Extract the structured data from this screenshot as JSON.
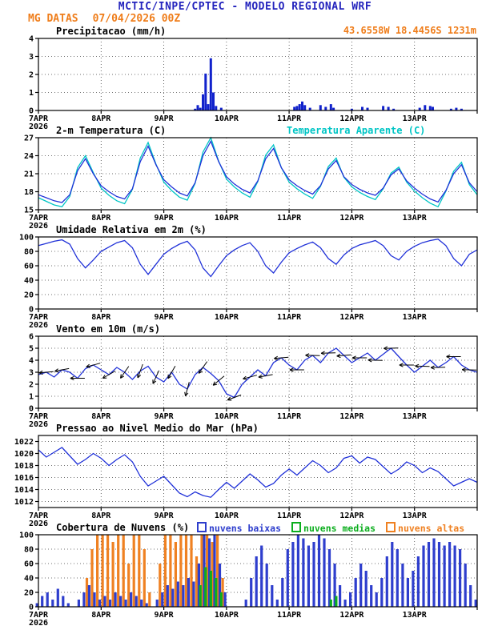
{
  "header": {
    "title": "MCTIC/INPE/CPTEC - MODELO REGIONAL WRF",
    "station": "MG DATAS",
    "run": "07/04/2026 00Z",
    "location": "43.6558W 18.4456S 1231m",
    "title_color": "#2323bd",
    "accent_color": "#ef7d1a"
  },
  "axis": {
    "ticks": [
      "7APR",
      "8APR",
      "9APR",
      "10APR",
      "11APR",
      "12APR",
      "13APR"
    ],
    "year": "2026",
    "hours_per_tick": 24,
    "total_hours": 168
  },
  "chart_data": [
    {
      "id": "precipitation",
      "title": "Precipitacao (mm/h)",
      "type": "bar",
      "ylim": [
        0,
        4
      ],
      "yticks": [
        0,
        1,
        2,
        3,
        4
      ],
      "bar_color": "#1122cc",
      "points": [
        [
          60,
          0.1
        ],
        [
          61,
          0.3
        ],
        [
          62,
          0.15
        ],
        [
          63,
          0.9
        ],
        [
          64,
          2.05
        ],
        [
          65,
          0.35
        ],
        [
          66,
          2.9
        ],
        [
          67,
          1.0
        ],
        [
          68,
          0.25
        ],
        [
          70,
          0.15
        ],
        [
          98,
          0.2
        ],
        [
          99,
          0.25
        ],
        [
          100,
          0.35
        ],
        [
          101,
          0.5
        ],
        [
          102,
          0.3
        ],
        [
          104,
          0.15
        ],
        [
          108,
          0.3
        ],
        [
          110,
          0.2
        ],
        [
          112,
          0.35
        ],
        [
          113,
          0.15
        ],
        [
          120,
          0.1
        ],
        [
          124,
          0.2
        ],
        [
          126,
          0.15
        ],
        [
          132,
          0.25
        ],
        [
          134,
          0.2
        ],
        [
          136,
          0.1
        ],
        [
          146,
          0.15
        ],
        [
          148,
          0.3
        ],
        [
          150,
          0.25
        ],
        [
          151,
          0.2
        ],
        [
          158,
          0.1
        ],
        [
          160,
          0.15
        ],
        [
          162,
          0.1
        ]
      ]
    },
    {
      "id": "temperature",
      "title": "2-m Temperatura (C)",
      "legend_label": "Temperatura Aparente (C)",
      "type": "multiline",
      "ylim": [
        15,
        27
      ],
      "yticks": [
        15,
        18,
        21,
        24,
        27
      ],
      "step_hours": 3,
      "series": [
        {
          "name": "Temperatura",
          "color": "#2031d8",
          "values": [
            17.5,
            17.0,
            16.5,
            16.2,
            17.5,
            21.5,
            23.5,
            21.0,
            19.0,
            18.0,
            17.2,
            16.8,
            18.5,
            23.0,
            25.6,
            22.5,
            20.0,
            18.8,
            17.8,
            17.3,
            19.5,
            24.0,
            26.4,
            23.0,
            20.5,
            19.3,
            18.4,
            17.8,
            19.8,
            23.5,
            25.2,
            22.0,
            20.0,
            19.0,
            18.2,
            17.6,
            19.0,
            21.8,
            23.2,
            20.5,
            19.2,
            18.4,
            17.8,
            17.4,
            18.6,
            20.8,
            21.8,
            19.8,
            18.6,
            17.6,
            16.8,
            16.3,
            18.2,
            21.0,
            22.5,
            19.5,
            18.0
          ]
        },
        {
          "name": "Temperatura Aparente",
          "color": "#00c5c5",
          "values": [
            17.0,
            16.4,
            15.8,
            15.5,
            17.2,
            22.0,
            24.0,
            21.2,
            18.6,
            17.4,
            16.5,
            16.0,
            18.4,
            23.6,
            26.2,
            22.6,
            19.6,
            18.2,
            17.1,
            16.6,
            19.4,
            24.6,
            27.0,
            23.1,
            20.1,
            18.8,
            17.8,
            17.1,
            19.7,
            24.1,
            25.8,
            22.0,
            19.6,
            18.5,
            17.6,
            16.9,
            18.9,
            22.2,
            23.6,
            20.4,
            18.8,
            17.9,
            17.2,
            16.7,
            18.5,
            21.1,
            22.1,
            19.6,
            18.1,
            17.0,
            16.1,
            15.5,
            18.1,
            21.4,
            22.9,
            19.2,
            17.5
          ]
        }
      ]
    },
    {
      "id": "relative-humidity",
      "title": "Umidade Relativa em 2m (%)",
      "type": "line",
      "ylim": [
        0,
        100
      ],
      "yticks": [
        0,
        20,
        40,
        60,
        80,
        100
      ],
      "color": "#2031d8",
      "step_hours": 3,
      "values": [
        88,
        91,
        94,
        96,
        90,
        70,
        57,
        68,
        80,
        86,
        92,
        95,
        85,
        62,
        48,
        62,
        76,
        84,
        90,
        94,
        82,
        57,
        45,
        60,
        74,
        82,
        88,
        92,
        80,
        60,
        50,
        65,
        78,
        84,
        89,
        93,
        85,
        70,
        62,
        75,
        84,
        89,
        92,
        95,
        88,
        74,
        68,
        80,
        87,
        92,
        95,
        97,
        88,
        70,
        60,
        76,
        82
      ]
    },
    {
      "id": "wind-10m",
      "title": "Vento em 10m (m/s)",
      "type": "wind",
      "ylim": [
        0,
        6
      ],
      "yticks": [
        0,
        1,
        2,
        3,
        4,
        5,
        6
      ],
      "color": "#2031d8",
      "step_hours": 3,
      "values": [
        2.8,
        3.0,
        2.6,
        3.2,
        3.0,
        2.5,
        3.3,
        3.6,
        3.2,
        2.8,
        3.4,
        3.0,
        2.4,
        3.1,
        3.5,
        2.6,
        2.2,
        3.0,
        2.0,
        1.6,
        2.8,
        3.4,
        2.9,
        2.3,
        1.2,
        0.9,
        2.0,
        2.6,
        3.2,
        2.7,
        3.8,
        4.2,
        3.6,
        3.2,
        4.0,
        4.4,
        3.8,
        4.6,
        5.0,
        4.4,
        3.8,
        4.2,
        4.6,
        4.0,
        4.5,
        5.0,
        4.3,
        3.6,
        3.0,
        3.5,
        4.0,
        3.4,
        3.8,
        4.3,
        3.6,
        3.2,
        3.0
      ],
      "barbs_deg": [
        [
          3,
          185
        ],
        [
          9,
          190
        ],
        [
          15,
          180
        ],
        [
          21,
          195
        ],
        [
          27,
          210
        ],
        [
          33,
          235
        ],
        [
          39,
          250
        ],
        [
          45,
          245
        ],
        [
          51,
          240
        ],
        [
          57,
          255
        ],
        [
          63,
          235
        ],
        [
          69,
          220
        ],
        [
          75,
          200
        ],
        [
          81,
          195
        ],
        [
          87,
          190
        ],
        [
          93,
          185
        ],
        [
          99,
          180
        ],
        [
          105,
          178
        ],
        [
          111,
          182
        ],
        [
          117,
          185
        ],
        [
          123,
          180
        ],
        [
          129,
          178
        ],
        [
          135,
          182
        ],
        [
          141,
          180
        ],
        [
          147,
          178
        ],
        [
          153,
          182
        ],
        [
          159,
          180
        ],
        [
          165,
          178
        ]
      ]
    },
    {
      "id": "mslp",
      "title": "Pressao ao Nivel Medio do Mar (hPa)",
      "type": "line",
      "ylim": [
        1011,
        1023
      ],
      "yticks": [
        1012,
        1014,
        1016,
        1018,
        1020,
        1022
      ],
      "color": "#2031d8",
      "step_hours": 3,
      "values": [
        1020.6,
        1019.4,
        1020.2,
        1021.0,
        1019.6,
        1018.2,
        1019.0,
        1020.0,
        1019.2,
        1018.0,
        1019.0,
        1019.8,
        1018.6,
        1016.2,
        1014.6,
        1015.4,
        1016.2,
        1014.8,
        1013.4,
        1012.8,
        1013.6,
        1013.0,
        1012.7,
        1014.0,
        1015.2,
        1014.2,
        1015.4,
        1016.6,
        1015.6,
        1014.4,
        1015.0,
        1016.4,
        1017.4,
        1016.4,
        1017.6,
        1018.8,
        1018.0,
        1016.8,
        1017.6,
        1019.2,
        1019.6,
        1018.4,
        1019.4,
        1019.0,
        1017.8,
        1016.6,
        1017.4,
        1018.6,
        1018.0,
        1016.8,
        1017.6,
        1017.0,
        1015.8,
        1014.6,
        1015.2,
        1015.8,
        1015.2
      ]
    },
    {
      "id": "cloud-cover",
      "title": "Cobertura de Nuvens (%)",
      "type": "cloud",
      "ylim": [
        0,
        100
      ],
      "yticks": [
        0,
        20,
        40,
        60,
        80,
        100
      ],
      "step_hours": 2,
      "series": [
        {
          "name": "nuvens baixas",
          "color": "#2e3ecd",
          "values": [
            5,
            15,
            20,
            10,
            25,
            15,
            5,
            0,
            10,
            20,
            30,
            20,
            10,
            15,
            10,
            20,
            15,
            10,
            20,
            15,
            10,
            5,
            0,
            10,
            20,
            30,
            25,
            35,
            30,
            40,
            35,
            60,
            100,
            95,
            100,
            60,
            20,
            0,
            0,
            0,
            10,
            40,
            70,
            85,
            60,
            30,
            10,
            40,
            80,
            90,
            100,
            95,
            85,
            90,
            100,
            95,
            80,
            60,
            30,
            10,
            20,
            40,
            60,
            50,
            30,
            20,
            40,
            70,
            90,
            80,
            60,
            40,
            50,
            70,
            85,
            90,
            95,
            90,
            85,
            90,
            85,
            80,
            60,
            30,
            10
          ]
        },
        {
          "name": "nuvens medias",
          "color": "#0cae1e",
          "values": [
            0,
            0,
            0,
            0,
            0,
            0,
            0,
            0,
            0,
            0,
            0,
            0,
            0,
            0,
            0,
            0,
            0,
            0,
            0,
            0,
            0,
            0,
            0,
            0,
            0,
            0,
            0,
            0,
            0,
            0,
            0,
            30,
            55,
            50,
            40,
            20,
            0,
            0,
            0,
            0,
            0,
            0,
            0,
            0,
            0,
            0,
            0,
            0,
            0,
            0,
            0,
            0,
            0,
            0,
            0,
            0,
            10,
            15,
            0,
            0,
            0,
            0,
            0,
            0,
            0,
            0,
            0,
            0,
            0,
            0,
            0,
            0,
            0,
            0,
            0,
            0,
            0,
            0,
            0,
            0,
            0,
            0,
            0,
            0,
            0
          ]
        },
        {
          "name": "nuvens altas",
          "color": "#ef8122",
          "values": [
            0,
            0,
            0,
            0,
            0,
            0,
            0,
            0,
            0,
            40,
            80,
            100,
            100,
            100,
            90,
            100,
            100,
            60,
            100,
            100,
            80,
            20,
            0,
            60,
            100,
            100,
            90,
            100,
            100,
            100,
            70,
            100,
            100,
            90,
            100,
            40,
            0,
            0,
            0,
            0,
            0,
            0,
            0,
            0,
            0,
            0,
            0,
            0,
            0,
            0,
            0,
            0,
            0,
            0,
            0,
            0,
            0,
            0,
            0,
            0,
            0,
            0,
            0,
            0,
            0,
            0,
            0,
            0,
            0,
            0,
            0,
            0,
            0,
            0,
            0,
            0,
            0,
            0,
            0,
            0,
            0,
            0,
            0,
            0,
            0
          ]
        }
      ]
    }
  ]
}
